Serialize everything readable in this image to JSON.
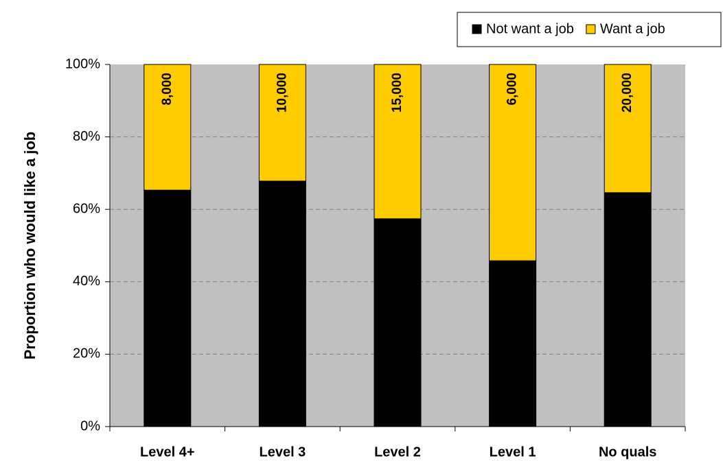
{
  "chart_data": {
    "type": "stacked_bar",
    "y_label": "Proportion who would like a job",
    "categories": [
      "Level 4+",
      "Level 3",
      "Level 2",
      "Level 1",
      "No quals"
    ],
    "series": [
      {
        "name": "Not want a job",
        "color": "#000000",
        "values": [
          65.3,
          67.8,
          57.4,
          45.8,
          64.6
        ]
      },
      {
        "name": "Want a job",
        "color": "#ffcc00",
        "values": [
          34.7,
          32.2,
          42.6,
          54.2,
          35.4
        ],
        "data_labels": [
          "8,000",
          "10,000",
          "15,000",
          "6,000",
          "20,000"
        ]
      }
    ],
    "ylim": [
      0,
      100
    ],
    "yticks": [
      {
        "value": 0,
        "label": "0%"
      },
      {
        "value": 20,
        "label": "20%"
      },
      {
        "value": 40,
        "label": "40%"
      },
      {
        "value": 60,
        "label": "60%"
      },
      {
        "value": 80,
        "label": "80%"
      },
      {
        "value": 100,
        "label": "100%"
      }
    ],
    "grid": true,
    "background": "#c0c0c0",
    "legend": "top-right"
  }
}
